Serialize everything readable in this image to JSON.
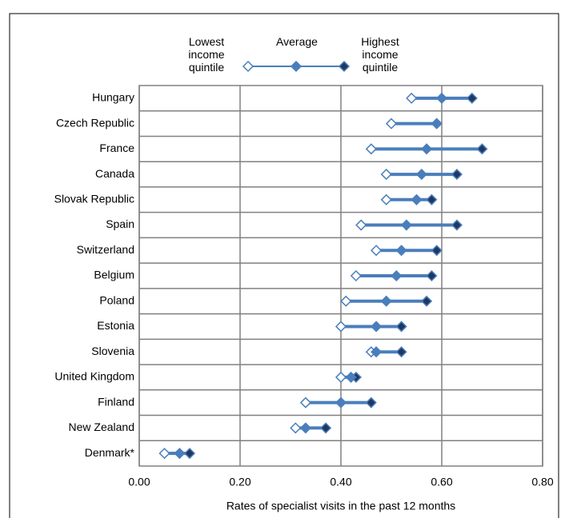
{
  "chart_data": {
    "type": "dumbbell",
    "x_label": "Rates of specialist visits in the past 12 months",
    "categories": [
      "Hungary",
      "Czech Republic",
      "France",
      "Canada",
      "Slovak Republic",
      "Spain",
      "Switzerland",
      "Belgium",
      "Poland",
      "Estonia",
      "Slovenia",
      "United Kingdom",
      "Finland",
      "New Zealand",
      "Denmark*"
    ],
    "series": [
      {
        "name": "Lowest income quintile",
        "color": "#4a7ebb",
        "values": [
          0.54,
          0.5,
          0.46,
          0.49,
          0.49,
          0.44,
          0.47,
          0.43,
          0.41,
          0.4,
          0.46,
          0.4,
          0.33,
          0.31,
          0.05
        ]
      },
      {
        "name": "Average",
        "color": "#4a7ebb",
        "values": [
          0.6,
          0.59,
          0.57,
          0.56,
          0.55,
          0.53,
          0.52,
          0.51,
          0.49,
          0.47,
          0.47,
          0.42,
          0.4,
          0.33,
          0.08
        ]
      },
      {
        "name": "Highest income quintile",
        "color": "#1f3864",
        "values": [
          0.66,
          0.59,
          0.68,
          0.63,
          0.58,
          0.63,
          0.59,
          0.58,
          0.57,
          0.52,
          0.52,
          0.43,
          0.46,
          0.37,
          0.1
        ]
      }
    ],
    "xlim": [
      0,
      0.8
    ],
    "xticks": [
      {
        "value": 0,
        "label": "0.00"
      },
      {
        "value": 0.2,
        "label": "0.20"
      },
      {
        "value": 0.4,
        "label": "0.40"
      },
      {
        "value": 0.6,
        "label": "0.60"
      },
      {
        "value": 0.8,
        "label": "0.80"
      }
    ],
    "grid": true
  }
}
